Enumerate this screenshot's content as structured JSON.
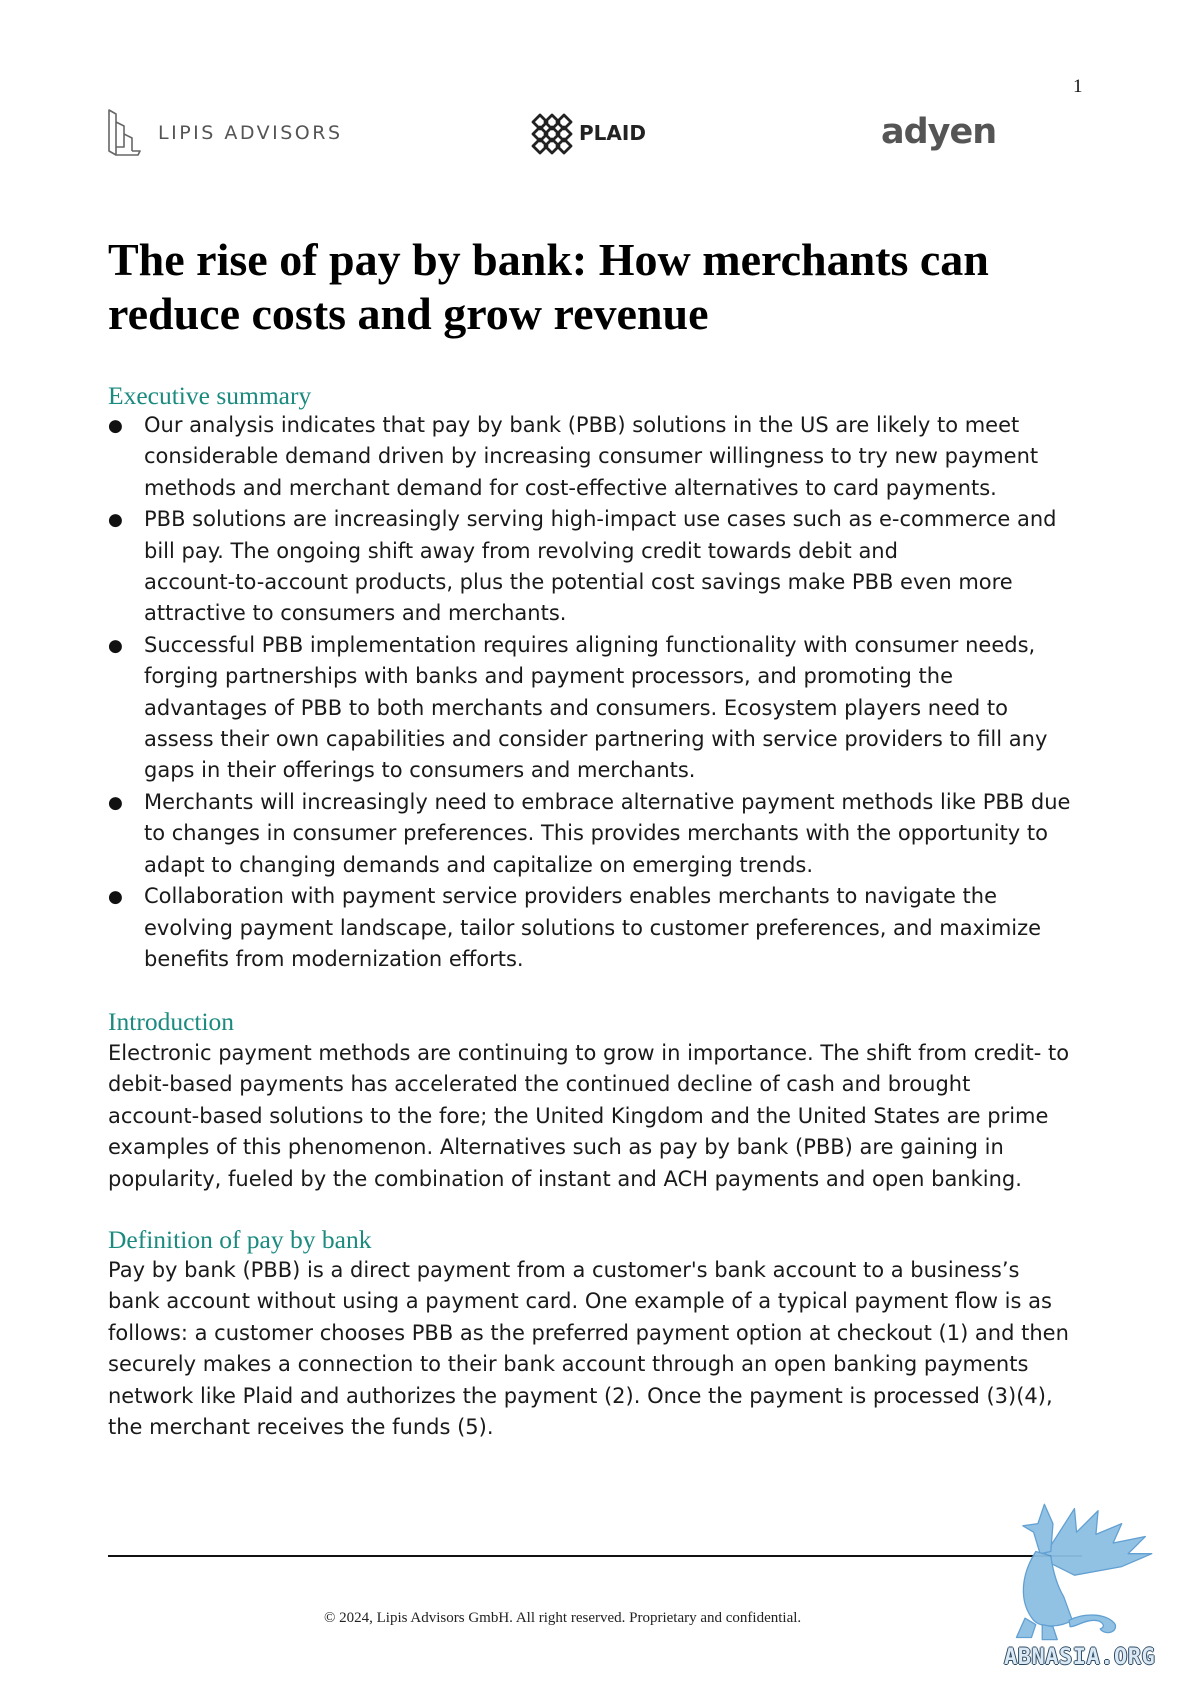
{
  "page_number": "1",
  "bullet_symbol": "●",
  "logos": {
    "lipis_advisors": "LIPIS ADVISORS",
    "plaid": "PLAID",
    "adyen": "adyen"
  },
  "title": {
    "lines": [
      "The rise of pay by bank: How merchants can",
      "reduce costs and grow revenue"
    ]
  },
  "executive_summary": {
    "heading": "Executive summary",
    "bullets": [
      {
        "lines": [
          "Our analysis indicates that pay by bank (PBB) solutions in the US are likely to meet",
          "considerable demand driven by increasing consumer willingness to try new payment",
          "methods and merchant demand for cost-effective alternatives to card payments."
        ]
      },
      {
        "lines": [
          "PBB solutions are increasingly serving high-impact use cases such as e-commerce and",
          "bill pay. The ongoing shift away from revolving credit towards debit and",
          "account-to-account products, plus the potential cost savings make PBB even more",
          "attractive to consumers and merchants."
        ]
      },
      {
        "lines": [
          "Successful PBB implementation requires aligning functionality with consumer needs,",
          "forging partnerships with banks and payment processors, and promoting the",
          "advantages of PBB to both merchants and consumers. Ecosystem players need to",
          "assess their own capabilities and consider partnering with service providers to fill any",
          "gaps in their offerings to consumers and merchants."
        ]
      },
      {
        "lines": [
          "Merchants will increasingly need to embrace alternative payment methods like PBB due",
          "to changes in consumer preferences. This provides merchants with the opportunity to",
          "adapt to changing demands and capitalize on emerging trends."
        ]
      },
      {
        "lines": [
          "Collaboration with payment service providers enables merchants to navigate the",
          "evolving payment landscape, tailor solutions to customer preferences, and maximize",
          "benefits from modernization efforts."
        ]
      }
    ]
  },
  "introduction": {
    "heading": "Introduction",
    "lines": [
      "Electronic payment methods are continuing to grow in importance. The shift from credit- to",
      "debit-based payments has accelerated the continued decline of cash and brought",
      "account-based solutions to the fore; the United Kingdom and the United States are prime",
      "examples of this phenomenon. Alternatives such as pay by bank (PBB) are gaining in",
      "popularity, fueled by the combination of instant and ACH payments and open banking."
    ]
  },
  "definition": {
    "heading": "Definition of pay by bank",
    "lines": [
      "Pay by bank (PBB) is a direct payment from a customer's bank account to a business’s",
      "bank account without using a payment card. One example of a typical payment flow is as",
      "follows: a customer chooses PBB as the preferred payment option at checkout (1) and then",
      "securely makes a connection to their bank account through an open banking payments",
      "network like Plaid and authorizes the payment (2). Once the payment is processed (3)(4),",
      "the merchant receives the funds (5)."
    ]
  },
  "footer": {
    "copyright": "© 2024, Lipis Advisors GmbH. All right reserved. Proprietary and confidential."
  },
  "watermark": {
    "text": "ABNASIA.ORG"
  },
  "icons": {
    "lipis_logo": "lipis-advisors-logo-icon",
    "plaid_logo": "plaid-logo-icon",
    "watermark": "griffin-watermark-icon"
  },
  "colors": {
    "heading": "#1b8a7f",
    "body_text": "#1a1a1a",
    "title": "#000000",
    "logo_gray": "#555555",
    "watermark_blue": "#8cbfe3"
  }
}
